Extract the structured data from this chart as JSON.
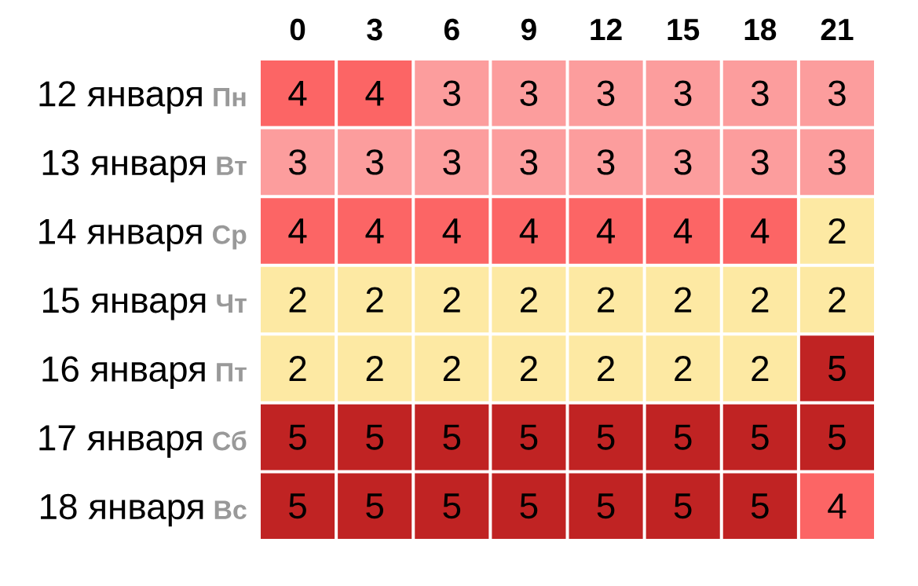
{
  "chart_data": {
    "type": "heatmap",
    "categories": [
      "0",
      "3",
      "6",
      "9",
      "12",
      "15",
      "18",
      "21"
    ],
    "y_categories": [
      "12 января",
      "13 января",
      "14 января",
      "15 января",
      "16 января",
      "17 января",
      "18 января"
    ],
    "y2_categories": [
      "Пн",
      "Вт",
      "Ср",
      "Чт",
      "Пт",
      "Сб",
      "Вс"
    ],
    "cells": [
      [
        4,
        4,
        3,
        3,
        3,
        3,
        3,
        3
      ],
      [
        3,
        3,
        3,
        3,
        3,
        3,
        3,
        3
      ],
      [
        4,
        4,
        4,
        4,
        4,
        4,
        4,
        2
      ],
      [
        2,
        2,
        2,
        2,
        2,
        2,
        2,
        2
      ],
      [
        2,
        2,
        2,
        2,
        2,
        2,
        2,
        5
      ],
      [
        5,
        5,
        5,
        5,
        5,
        5,
        5,
        5
      ],
      [
        5,
        5,
        5,
        5,
        5,
        5,
        5,
        4
      ]
    ],
    "colors": [
      [
        "#fc6565",
        "#fc6565",
        "#fc9d9d",
        "#fc9d9d",
        "#fc9d9d",
        "#fc9d9d",
        "#fc9d9d",
        "#fc9d9d"
      ],
      [
        "#fc9d9d",
        "#fc9d9d",
        "#fc9d9d",
        "#fc9d9d",
        "#fc9d9d",
        "#fc9d9d",
        "#fc9d9d",
        "#fc9d9d"
      ],
      [
        "#fc6565",
        "#fc6565",
        "#fc6565",
        "#fc6565",
        "#fc6565",
        "#fc6565",
        "#fc6565",
        "#fde9a3"
      ],
      [
        "#fde9a3",
        "#fde9a3",
        "#fde9a3",
        "#fde9a3",
        "#fde9a3",
        "#fde9a3",
        "#fde9a3",
        "#fde9a3"
      ],
      [
        "#fde9a3",
        "#fde9a3",
        "#fde9a3",
        "#fde9a3",
        "#fde9a3",
        "#fde9a3",
        "#fde9a3",
        "#c02323"
      ],
      [
        "#c02323",
        "#c02323",
        "#c02323",
        "#c02323",
        "#c02323",
        "#c02323",
        "#c02323",
        "#c02323"
      ],
      [
        "#c02323",
        "#c02323",
        "#c02323",
        "#c02323",
        "#c02323",
        "#c02323",
        "#c02323",
        "#fc6565"
      ]
    ],
    "data_labels": true
  }
}
